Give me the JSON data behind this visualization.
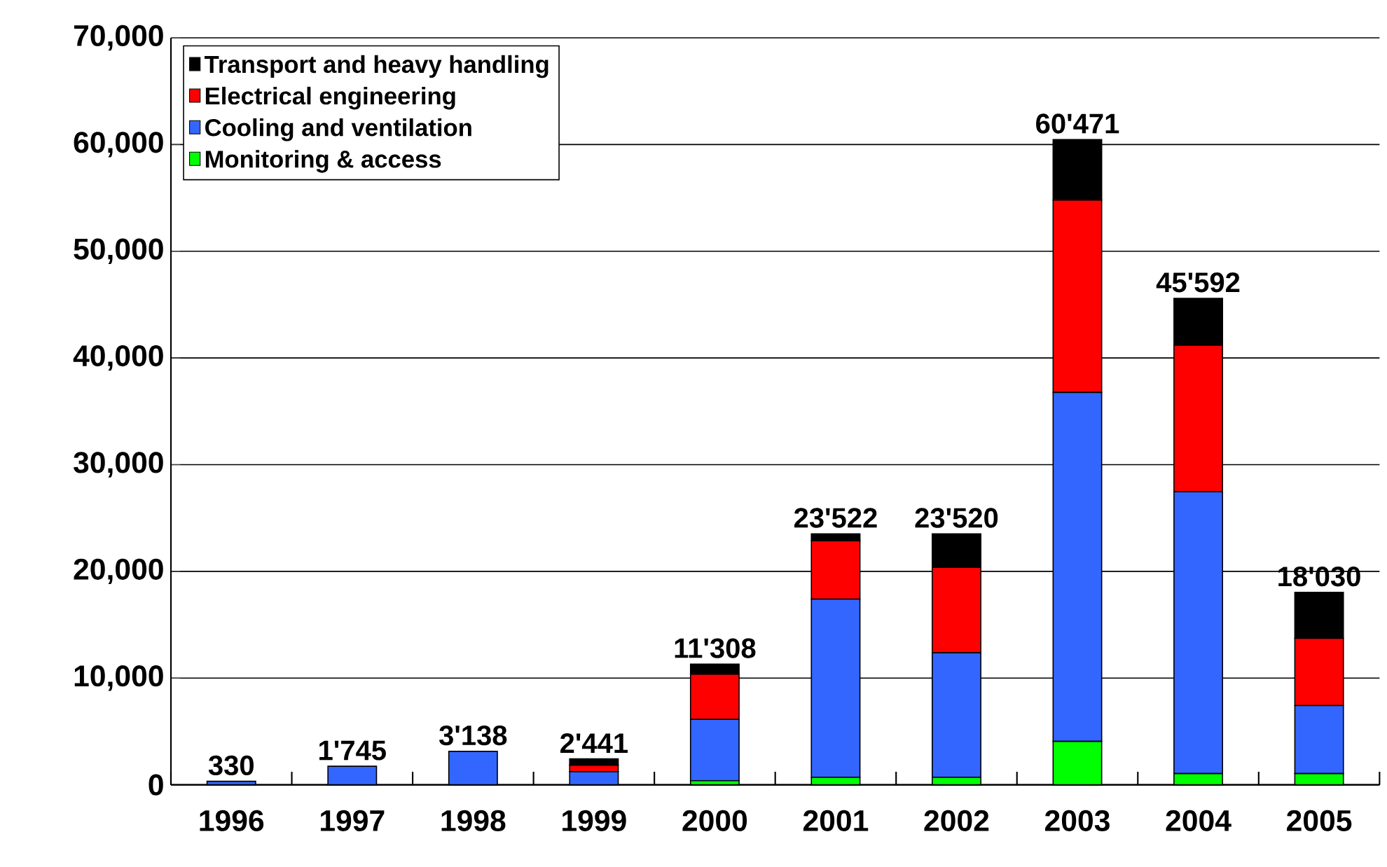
{
  "chart_data": {
    "type": "bar",
    "stacked": true,
    "categories": [
      "1996",
      "1997",
      "1998",
      "1999",
      "2000",
      "2001",
      "2002",
      "2003",
      "2004",
      "2005"
    ],
    "series": [
      {
        "name": "Monitoring & access",
        "color": "#00ff00",
        "values": [
          0,
          0,
          0,
          0,
          390,
          700,
          700,
          4070,
          1050,
          1050
        ]
      },
      {
        "name": "Cooling and ventilation",
        "color": "#3366ff",
        "values": [
          330,
          1745,
          3138,
          1230,
          5740,
          16700,
          11670,
          32700,
          26410,
          6380
        ]
      },
      {
        "name": "Electrical engineering",
        "color": "#ff0000",
        "values": [
          0,
          0,
          0,
          610,
          4240,
          5470,
          8010,
          18020,
          13730,
          6300
        ]
      },
      {
        "name": "Transport and heavy handling",
        "color": "#000000",
        "values": [
          0,
          0,
          0,
          601,
          938,
          652,
          3140,
          5681,
          4402,
          4300
        ]
      }
    ],
    "totals": [
      "330",
      "1'745",
      "3'138",
      "2'441",
      "11'308",
      "23'522",
      "23'520",
      "60'471",
      "45'592",
      "18'030"
    ],
    "ylim": [
      0,
      70000
    ],
    "yticks": [
      0,
      {
        "value": 10000,
        "label": "10,000"
      },
      {
        "value": 20000,
        "label": "20,000"
      },
      {
        "value": 30000,
        "label": "30,000"
      },
      {
        "value": 40000,
        "label": "40,000"
      },
      {
        "value": 50000,
        "label": "50,000"
      },
      {
        "value": 60000,
        "label": "60,000"
      },
      {
        "value": 70000,
        "label": "70,000"
      }
    ],
    "grid": "y",
    "legend": "top left"
  }
}
